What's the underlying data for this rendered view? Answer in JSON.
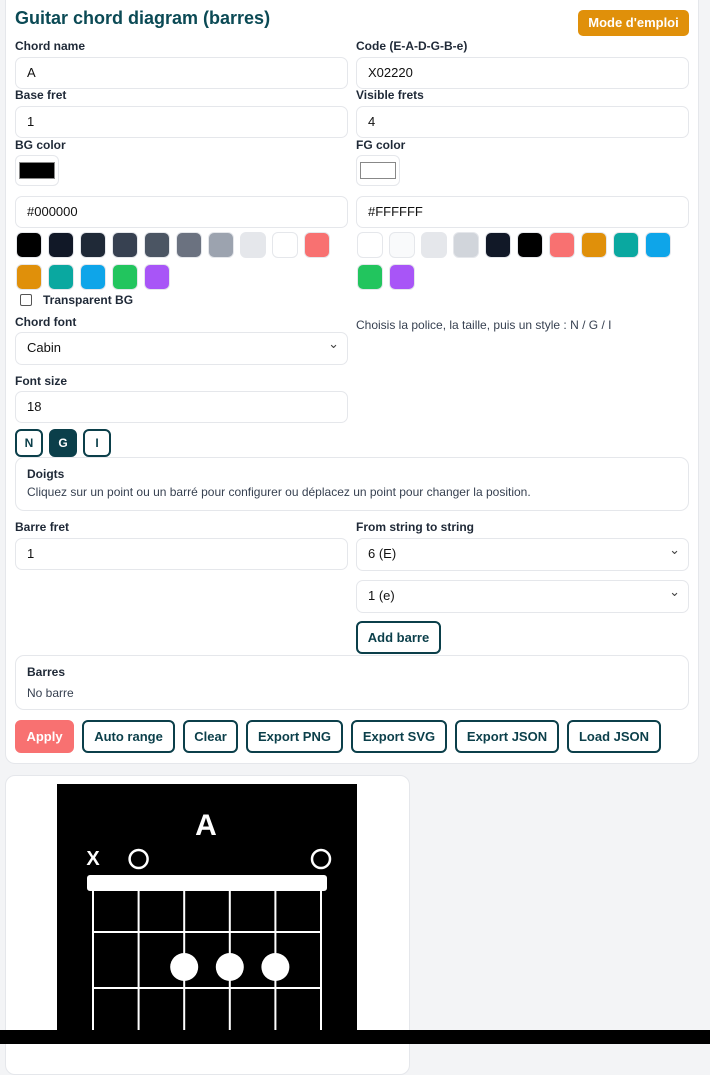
{
  "header": {
    "title": "Guitar chord diagram (barres)",
    "help_button": "Mode d'emploi"
  },
  "fields": {
    "chord_name": {
      "label": "Chord name",
      "value": "A"
    },
    "code": {
      "label": "Code (E-A-D-G-B-e)",
      "value": "X02220"
    },
    "base_fret": {
      "label": "Base fret",
      "value": "1"
    },
    "visible_frets": {
      "label": "Visible frets",
      "value": "4"
    },
    "bg_color": {
      "label": "BG color",
      "value": "#000000"
    },
    "fg_color": {
      "label": "FG color",
      "value": "#FFFFFF"
    },
    "transparent_bg": {
      "label": "Transparent BG",
      "checked": false
    },
    "chord_font": {
      "label": "Chord font",
      "value": "Cabin"
    },
    "font_hint": "Choisis la police, la taille, puis un style : N / G / I",
    "font_size": {
      "label": "Font size",
      "value": "18"
    },
    "styles": [
      {
        "label": "N",
        "active": false
      },
      {
        "label": "G",
        "active": true
      },
      {
        "label": "I",
        "active": false
      }
    ]
  },
  "bg_palette": [
    "#000000",
    "#111827",
    "#1f2937",
    "#374151",
    "#4b5563",
    "#6b7280",
    "#9ca3af",
    "#e5e7eb",
    "#ffffff",
    "#f87171",
    "#e0900a",
    "#0aa8a0",
    "#0ea5e9",
    "#22c55e",
    "#a855f7"
  ],
  "fg_palette": [
    "#ffffff",
    "#f9fafb",
    "#e5e7eb",
    "#d1d5db",
    "#111827",
    "#000000",
    "#f87171",
    "#e0900a",
    "#0aa8a0",
    "#0ea5e9",
    "#22c55e",
    "#a855f7"
  ],
  "fingers": {
    "title": "Doigts",
    "text": "Cliquez sur un point ou un barré pour configurer ou déplacez un point pour changer la position."
  },
  "barre": {
    "fret_label": "Barre fret",
    "fret_value": "1",
    "strings_label": "From string to string",
    "from": "6 (E)",
    "to": "1 (e)",
    "add_button": "Add barre"
  },
  "barres": {
    "title": "Barres",
    "text": "No barre"
  },
  "actions": {
    "apply": "Apply",
    "auto_range": "Auto range",
    "clear": "Clear",
    "export_png": "Export PNG",
    "export_svg": "Export SVG",
    "export_json": "Export JSON",
    "load_json": "Load JSON"
  },
  "diagram": {
    "chord": "A",
    "muted_marker": "X",
    "string_states": [
      "X",
      "O",
      "2",
      "2",
      "2",
      "O"
    ]
  },
  "colors": {
    "accent": "#0b4a55",
    "help": "#e0900a",
    "apply": "#f87171"
  }
}
